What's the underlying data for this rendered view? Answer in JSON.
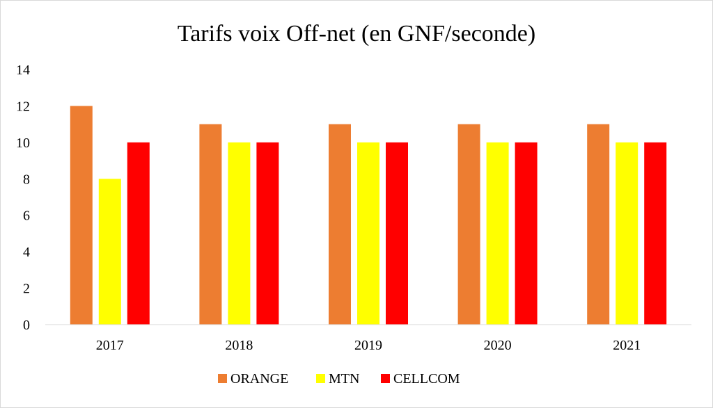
{
  "chart_data": {
    "type": "bar",
    "title": "Tarifs voix Off-net (en GNF/seconde)",
    "categories": [
      "2017",
      "2018",
      "2019",
      "2020",
      "2021"
    ],
    "series": [
      {
        "name": "ORANGE",
        "color": "#ED7D31",
        "values": [
          12,
          11,
          11,
          11,
          11
        ]
      },
      {
        "name": "MTN",
        "color": "#FFFF00",
        "values": [
          8,
          10,
          10,
          10,
          10
        ]
      },
      {
        "name": "CELLCOM",
        "color": "#FF0000",
        "values": [
          10,
          10,
          10,
          10,
          10
        ]
      }
    ],
    "ylim": [
      0,
      14
    ],
    "yticks": [
      "0",
      "2",
      "4",
      "6",
      "8",
      "10",
      "12",
      "14"
    ],
    "grid": false,
    "legend_position": "bottom"
  }
}
